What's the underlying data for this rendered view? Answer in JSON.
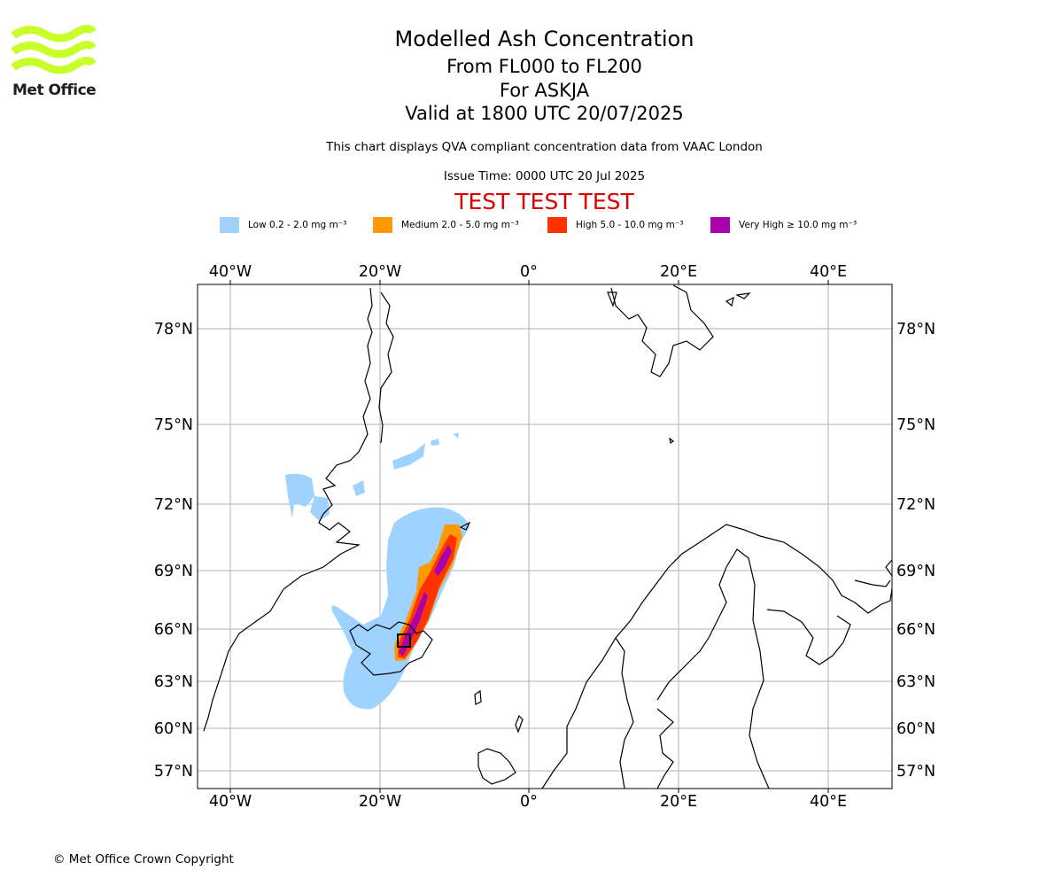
{
  "header": {
    "title": "Modelled Ash Concentration",
    "levels": "From FL000 to FL200",
    "volcano": "For ASKJA",
    "valid": "Valid at 1800 UTC 20/07/2025",
    "note": "This chart displays QVA compliant concentration data from VAAC London",
    "issue": "Issue Time: 0000 UTC 20 Jul 2025",
    "banner": "TEST TEST TEST"
  },
  "logo": {
    "text": "Met Office",
    "color": "#c8ff2a"
  },
  "legend": [
    {
      "label": "Low 0.2 - 2.0 mg m⁻³",
      "color": "#a0d2ff"
    },
    {
      "label": "Medium 2.0 - 5.0 mg m⁻³",
      "color": "#ff9900"
    },
    {
      "label": "High 5.0 - 10.0 mg m⁻³",
      "color": "#ff3300"
    },
    {
      "label": "Very High  ≥  10.0 mg m⁻³",
      "color": "#aa00aa"
    }
  ],
  "map": {
    "lon_ticks": [
      "40°W",
      "20°W",
      "0°",
      "20°E",
      "40°E"
    ],
    "lat_ticks": [
      "78°N",
      "75°N",
      "72°N",
      "69°N",
      "66°N",
      "63°N",
      "60°N",
      "57°N"
    ]
  },
  "footer": {
    "copyright": "© Met Office Crown Copyright"
  }
}
